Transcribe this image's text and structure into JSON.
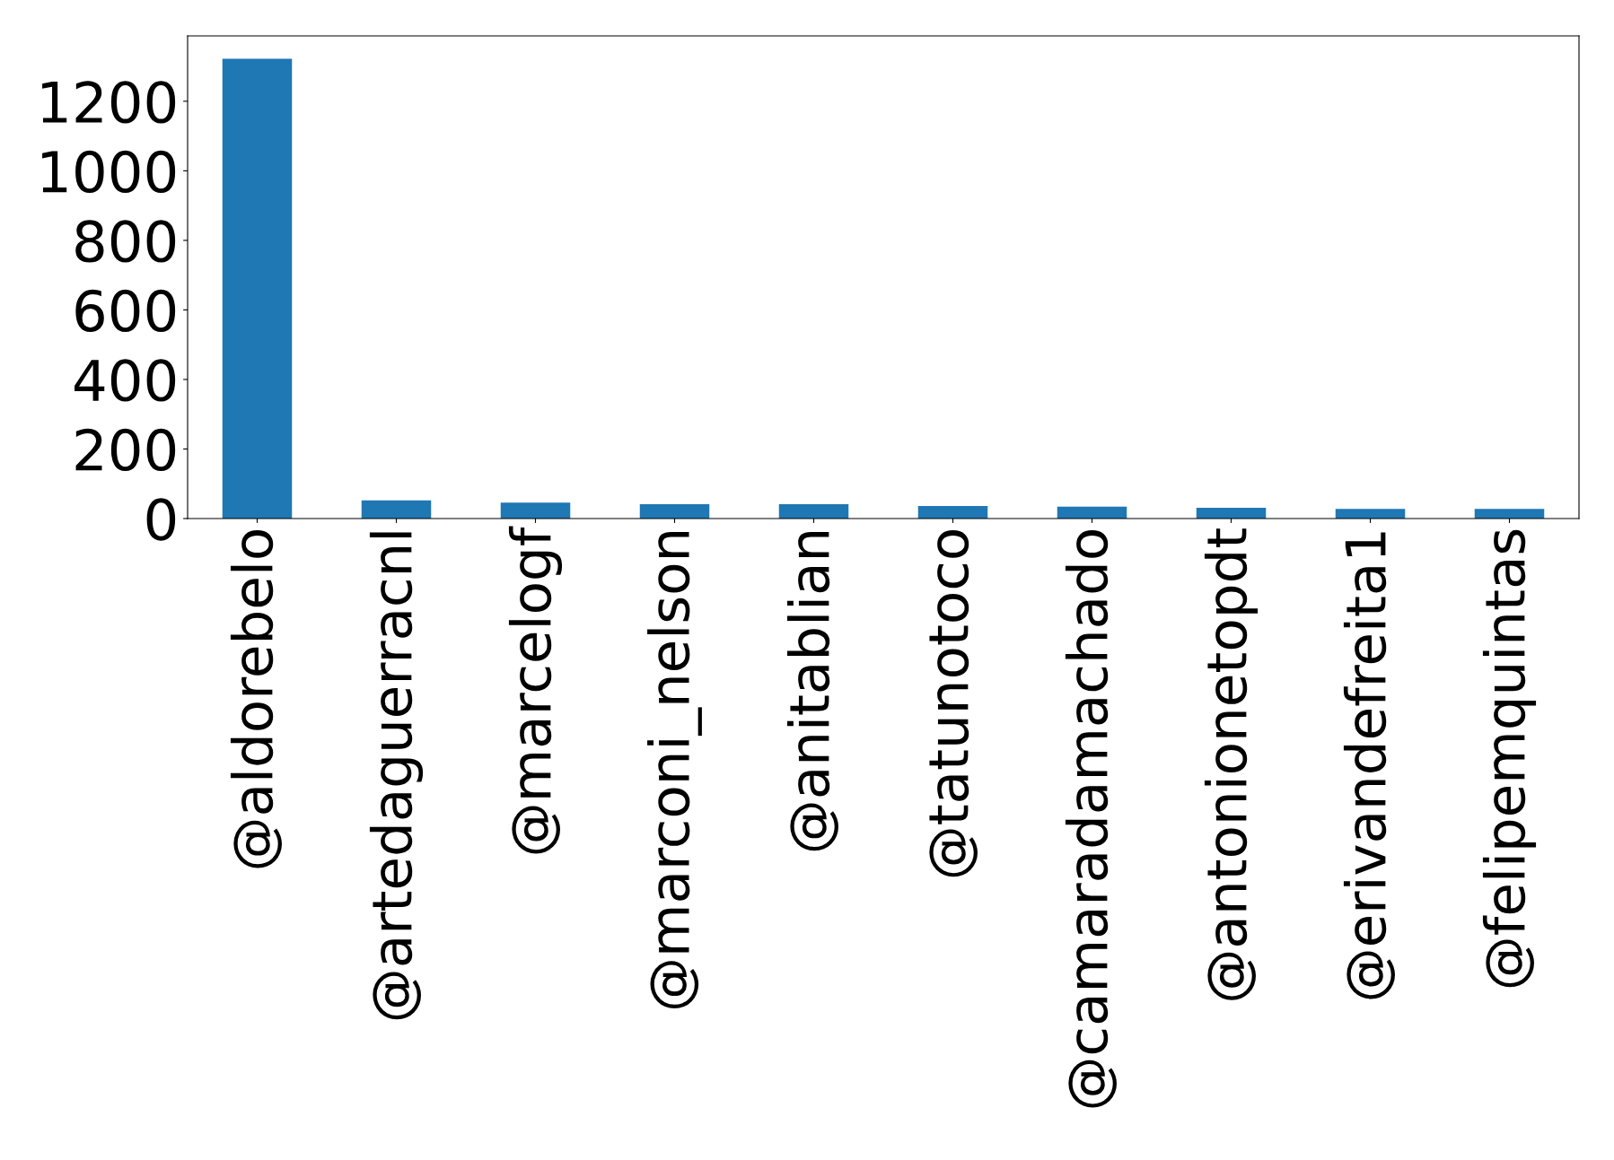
{
  "chart_data": {
    "type": "bar",
    "categories": [
      "@aldorebelo",
      "@artedaguerracnl",
      "@marcelogf",
      "@marconi_nelson",
      "@anitablian",
      "@tatunotoco",
      "@camaradamachado",
      "@antonionetopdt",
      "@erivandefreita1",
      "@felipemquintas"
    ],
    "values": [
      1322,
      52,
      46,
      41,
      41,
      36,
      34,
      31,
      28,
      28
    ],
    "color": "#1f77b4",
    "ylim": [
      0,
      1388
    ],
    "yticks": [
      0,
      200,
      400,
      600,
      800,
      1000,
      1200
    ],
    "grid": false,
    "legend": false
  }
}
